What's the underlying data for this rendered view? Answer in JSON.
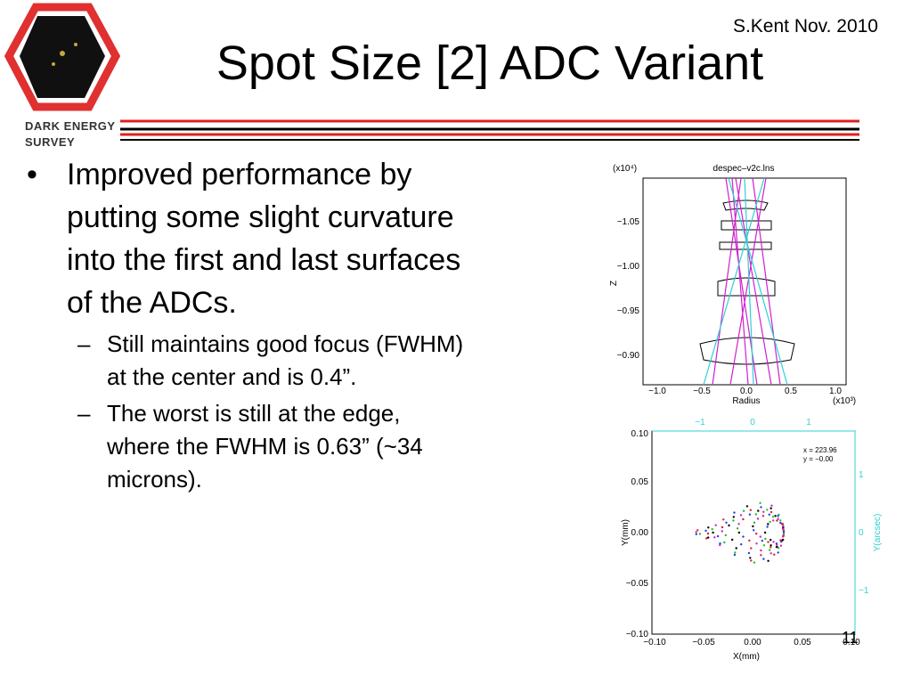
{
  "header": {
    "author": "S.Kent Nov. 2010",
    "title": "Spot Size [2] ADC Variant",
    "logo_line1": "DARK ENERGY",
    "logo_line2": "SURVEY"
  },
  "bullets": [
    {
      "text": "Improved performance by putting some slight curvature into the first and last surfaces of the ADCs.",
      "sub": [
        "Still maintains good focus (FWHM) at the center and is 0.4”.",
        "The worst is still at the edge, where the FWHM is 0.63” (~34 microns)."
      ]
    }
  ],
  "figure1": {
    "title": "despec–v2c.lns",
    "y_exponent": "(x10⁴)",
    "x_exponent": "(x10³)",
    "xlabel": "Radius",
    "ylabel": "Z",
    "xticks": [
      "−1.0",
      "−0.5",
      "0.0",
      "0.5",
      "1.0"
    ],
    "yticks": [
      "−1.05",
      "−1.00",
      "−0.95",
      "−0.90"
    ]
  },
  "figure2": {
    "xlabel": "X(mm)",
    "ylabel": "Y(mm)",
    "right_label": "Y(arcsec)",
    "xticks": [
      "−0.10",
      "−0.05",
      "0.00",
      "0.05",
      "0.10"
    ],
    "yticks": [
      "0.10",
      "0.05",
      "0.00",
      "−0.05",
      "−0.10"
    ],
    "top_ticks": [
      "−1",
      "0",
      "1"
    ],
    "right_ticks": [
      "1",
      "0",
      "−1"
    ],
    "annotation": [
      "x = 223.96",
      "y = −0.00"
    ]
  },
  "page_number": "11"
}
